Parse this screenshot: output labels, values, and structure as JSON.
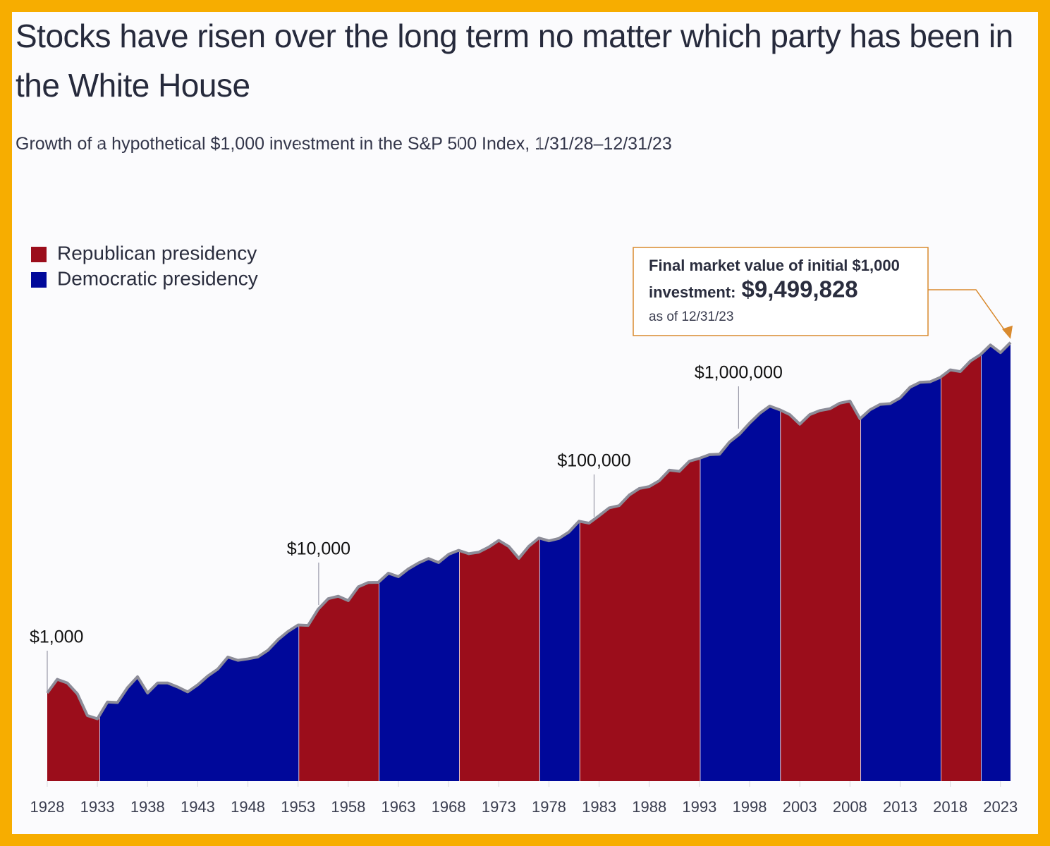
{
  "chart_data": {
    "type": "area",
    "title": "Stocks have risen over the long term no matter which party has been in the White House",
    "subtitle": "Growth of a hypothetical $1,000 investment in the S&P 500 Index, 1/31/28–12/31/23",
    "log_scale": true,
    "xlim": [
      1928,
      2024
    ],
    "ylim": [
      100,
      100000000
    ],
    "xticks": [
      1928,
      1933,
      1938,
      1943,
      1948,
      1953,
      1958,
      1963,
      1968,
      1973,
      1978,
      1983,
      1988,
      1993,
      1998,
      2003,
      2008,
      2013,
      2018,
      2023
    ],
    "line_color": "#8c8c98",
    "x": [
      1928,
      1929,
      1930,
      1931,
      1932,
      1933,
      1934,
      1935,
      1936,
      1937,
      1938,
      1939,
      1940,
      1941,
      1942,
      1943,
      1944,
      1945,
      1946,
      1947,
      1948,
      1949,
      1950,
      1951,
      1952,
      1953,
      1954,
      1955,
      1956,
      1957,
      1958,
      1959,
      1960,
      1961,
      1962,
      1963,
      1964,
      1965,
      1966,
      1967,
      1968,
      1969,
      1970,
      1971,
      1972,
      1973,
      1974,
      1975,
      1976,
      1977,
      1978,
      1979,
      1980,
      1981,
      1982,
      1983,
      1984,
      1985,
      1986,
      1987,
      1988,
      1989,
      1990,
      1991,
      1992,
      1993,
      1994,
      1995,
      1996,
      1997,
      1998,
      1999,
      2000,
      2001,
      2002,
      2003,
      2004,
      2005,
      2006,
      2007,
      2008,
      2009,
      2010,
      2011,
      2012,
      2013,
      2014,
      2015,
      2016,
      2017,
      2018,
      2019,
      2020,
      2021,
      2022,
      2023,
      2024
    ],
    "values": [
      1000,
      1430,
      1300,
      980,
      555,
      510,
      790,
      780,
      1150,
      1530,
      1000,
      1300,
      1300,
      1170,
      1030,
      1240,
      1560,
      1870,
      2560,
      2350,
      2440,
      2570,
      3060,
      4030,
      5000,
      5910,
      5850,
      8930,
      11760,
      12530,
      11180,
      16030,
      17950,
      18040,
      22900,
      20900,
      25660,
      29890,
      33610,
      30230,
      37480,
      41620,
      38090,
      39610,
      45270,
      53860,
      45940,
      33780,
      46350,
      57400,
      53280,
      56780,
      67250,
      89050,
      84680,
      102820,
      125980,
      133880,
      176360,
      209270,
      220260,
      256850,
      338220,
      327720,
      427530,
      460090,
      506460,
      513150,
      705990,
      868090,
      1157670,
      1488540,
      1801730,
      1637730,
      1443070,
      1124130,
      1446600,
      1604030,
      1682770,
      1948590,
      2055690,
      1295150,
      1637890,
      1884590,
      1924420,
      2232520,
      2955680,
      3360110,
      3406560,
      3814000,
      4646600,
      4442850,
      5841700,
      6916760,
      8902360,
      7290260,
      9499828
    ],
    "parties": [
      {
        "name": "Republican presidency",
        "color": "#9b0d1b"
      },
      {
        "name": "Democratic presidency",
        "color": "#00089a"
      }
    ],
    "periods": [
      {
        "start": 1928,
        "end": 1933.2,
        "party": 0
      },
      {
        "start": 1933.2,
        "end": 1953.05,
        "party": 1
      },
      {
        "start": 1953.05,
        "end": 1961.05,
        "party": 0
      },
      {
        "start": 1961.05,
        "end": 1969.05,
        "party": 1
      },
      {
        "start": 1969.05,
        "end": 1977.05,
        "party": 0
      },
      {
        "start": 1977.05,
        "end": 1981.05,
        "party": 1
      },
      {
        "start": 1981.05,
        "end": 1993.05,
        "party": 0
      },
      {
        "start": 1993.05,
        "end": 2001.05,
        "party": 1
      },
      {
        "start": 2001.05,
        "end": 2009.05,
        "party": 0
      },
      {
        "start": 2009.05,
        "end": 2017.05,
        "party": 1
      },
      {
        "start": 2017.05,
        "end": 2021.05,
        "party": 0
      },
      {
        "start": 2021.05,
        "end": 2024,
        "party": 1
      }
    ],
    "milestones": [
      {
        "x": 1928,
        "value": 1000,
        "label": "$1,000"
      },
      {
        "x": 1955.05,
        "value": 10000,
        "label": "$10,000"
      },
      {
        "x": 1982.5,
        "value": 100000,
        "label": "$100,000"
      },
      {
        "x": 1996.9,
        "value": 1000000,
        "label": "$1,000,000"
      }
    ],
    "callout": {
      "text": "Final market value of initial $1,000",
      "lead": "investment:",
      "value": {
        "value": 9499828,
        "label": "$9,499,828"
      },
      "note": "as of 12/31/23"
    }
  }
}
